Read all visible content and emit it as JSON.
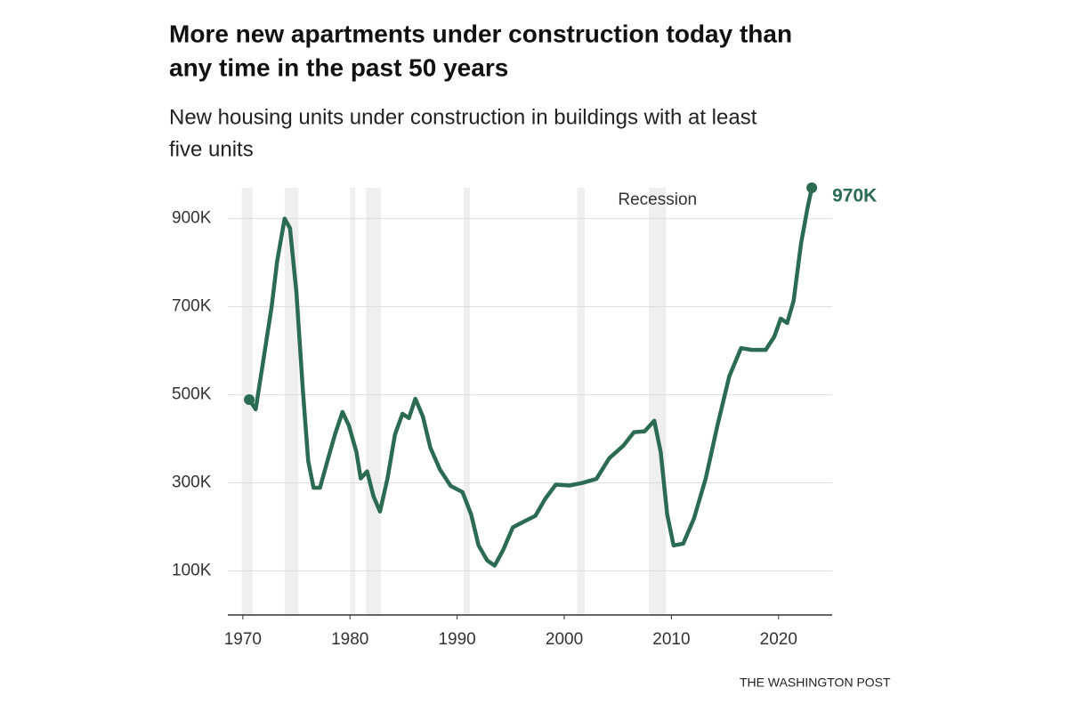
{
  "chart_data": {
    "type": "line",
    "title": [
      "More new apartments under construction today than",
      "any time in the past 50 years"
    ],
    "subtitle": [
      "New housing units under construction in buildings with at least",
      "five units"
    ],
    "source": "THE WASHINGTON POST",
    "recession_label": "Recession",
    "recessions": [
      [
        1969.9,
        1970.9
      ],
      [
        1973.9,
        1975.2
      ],
      [
        1980.0,
        1980.5
      ],
      [
        1981.5,
        1982.9
      ],
      [
        1990.6,
        1991.2
      ],
      [
        2001.2,
        2001.9
      ],
      [
        2007.9,
        2009.5
      ]
    ],
    "recession_color": "#efefef",
    "xlim": [
      1968.6,
      2025
    ],
    "xticks": [
      1970,
      1980,
      1990,
      2000,
      2010,
      2020
    ],
    "ylim": [
      0,
      970
    ],
    "yticks": [
      {
        "value": 100,
        "label": "100K"
      },
      {
        "value": 300,
        "label": "300K"
      },
      {
        "value": 500,
        "label": "500K"
      },
      {
        "value": 700,
        "label": "700K"
      },
      {
        "value": 900,
        "label": "900K"
      }
    ],
    "grid": true,
    "series": [
      {
        "name": "New housing units under construction",
        "color": "#2a6b52",
        "x": [
          1970.6,
          1971.2,
          1972.0,
          1972.7,
          1973.2,
          1973.9,
          1974.4,
          1975.0,
          1975.6,
          1976.1,
          1976.6,
          1977.2,
          1977.9,
          1978.6,
          1979.3,
          1979.9,
          1980.6,
          1981.0,
          1981.6,
          1982.2,
          1982.8,
          1983.5,
          1984.2,
          1984.9,
          1985.5,
          1986.1,
          1986.8,
          1987.5,
          1988.4,
          1989.4,
          1990.5,
          1991.3,
          1992.0,
          1992.8,
          1993.5,
          1994.3,
          1995.2,
          1996.3,
          1997.3,
          1998.2,
          1999.2,
          2000.5,
          2001.7,
          2003.0,
          2004.2,
          2005.5,
          2006.5,
          2007.5,
          2008.4,
          2009.0,
          2009.6,
          2010.2,
          2011.1,
          2012.1,
          2013.2,
          2014.3,
          2015.4,
          2016.5,
          2017.5,
          2018.8,
          2019.6,
          2020.2,
          2020.8,
          2021.4,
          2022.1,
          2022.7,
          2023.1
        ],
        "values": [
          489,
          467,
          592,
          702,
          803,
          900,
          878,
          733,
          511,
          350,
          289,
          289,
          350,
          410,
          461,
          430,
          370,
          310,
          326,
          269,
          235,
          310,
          410,
          457,
          447,
          491,
          451,
          380,
          330,
          293,
          279,
          229,
          158,
          124,
          112,
          148,
          199,
          213,
          225,
          263,
          296,
          294,
          300,
          309,
          356,
          384,
          415,
          417,
          441,
          370,
          229,
          158,
          162,
          219,
          310,
          431,
          542,
          606,
          602,
          602,
          632,
          673,
          663,
          713,
          844,
          924,
          970
        ],
        "value_labels": [
          null,
          null,
          null,
          null,
          null,
          null,
          null,
          null,
          null,
          null,
          null,
          null,
          null,
          null,
          null,
          null,
          null,
          null,
          null,
          null,
          null,
          null,
          null,
          null,
          null,
          null,
          null,
          null,
          null,
          null,
          null,
          null,
          null,
          null,
          null,
          null,
          null,
          null,
          null,
          null,
          null,
          null,
          null,
          null,
          null,
          null,
          null,
          null,
          null,
          null,
          null,
          null,
          null,
          null,
          null,
          null,
          null,
          null,
          null,
          null,
          null,
          null,
          null,
          null,
          null,
          null,
          "970K"
        ]
      }
    ]
  }
}
